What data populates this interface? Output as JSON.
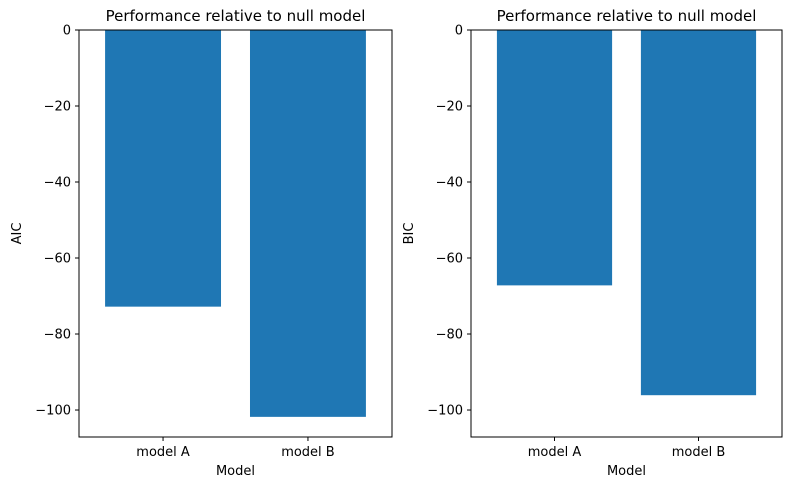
{
  "chart_data": [
    {
      "type": "bar",
      "title": "Performance relative to null model",
      "xlabel": "Model",
      "ylabel": "AIC",
      "categories": [
        "model A",
        "model B"
      ],
      "values": [
        -72.8,
        -101.8
      ],
      "ylim": [
        -107.1,
        0
      ],
      "yticks": [
        0,
        -20,
        -40,
        -60,
        -80,
        -100
      ],
      "ytick_labels": [
        "0",
        "−20",
        "−40",
        "−60",
        "−80",
        "−100"
      ],
      "bar_color": "#1f77b4",
      "grid": false
    },
    {
      "type": "bar",
      "title": "Performance relative to null model",
      "xlabel": "Model",
      "ylabel": "BIC",
      "categories": [
        "model A",
        "model B"
      ],
      "values": [
        -67.2,
        -96.1
      ],
      "ylim": [
        -107.1,
        0
      ],
      "yticks": [
        0,
        -20,
        -40,
        -60,
        -80,
        -100
      ],
      "ytick_labels": [
        "0",
        "−20",
        "−40",
        "−60",
        "−80",
        "−100"
      ],
      "bar_color": "#1f77b4",
      "grid": false
    }
  ]
}
